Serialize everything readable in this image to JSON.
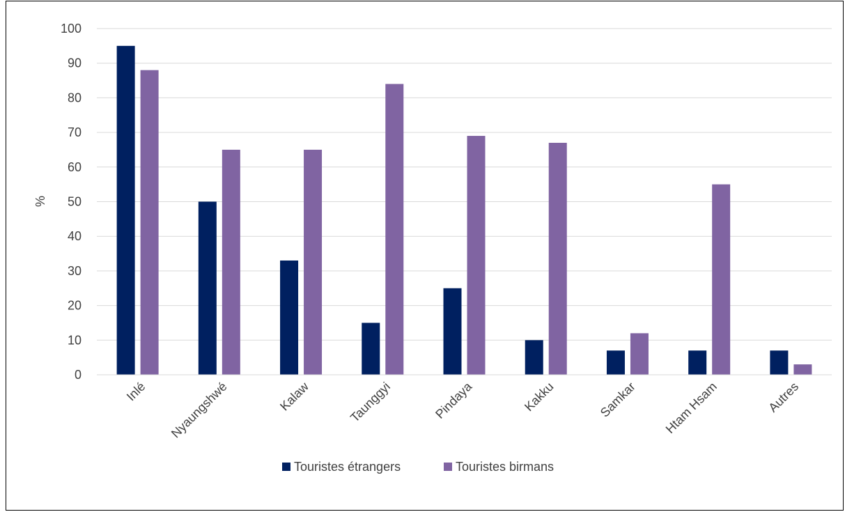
{
  "chart_data": {
    "type": "bar",
    "title": "",
    "xlabel": "",
    "ylabel": "%",
    "ylim": [
      0,
      100
    ],
    "yticks": [
      0,
      10,
      20,
      30,
      40,
      50,
      60,
      70,
      80,
      90,
      100
    ],
    "grid": true,
    "legend_position": "bottom",
    "categories": [
      "Inlé",
      "Nyaungshwé",
      "Kalaw",
      "Taunggyi",
      "Pindaya",
      "Kakku",
      "Samkar",
      "Htam Hsam",
      "Autres"
    ],
    "series": [
      {
        "name": "Touristes étrangers",
        "color": "#002060",
        "values": [
          95,
          50,
          33,
          15,
          25,
          10,
          7,
          7,
          7
        ]
      },
      {
        "name": "Touristes birmans",
        "color": "#8064A2",
        "values": [
          88,
          65,
          65,
          84,
          69,
          67,
          12,
          55,
          3
        ]
      }
    ]
  }
}
